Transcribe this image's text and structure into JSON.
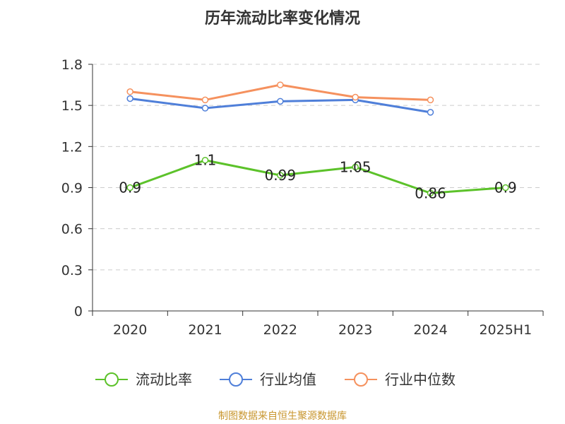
{
  "chart_data": {
    "type": "line",
    "title": "历年流动比率变化情况",
    "categories": [
      "2020",
      "2021",
      "2022",
      "2023",
      "2024",
      "2025H1"
    ],
    "ylim": [
      0,
      1.8
    ],
    "yticks": [
      "0",
      "0.3",
      "0.6",
      "0.9",
      "1.2",
      "1.5",
      "1.8"
    ],
    "grid": true,
    "legend_position": "bottom",
    "series": [
      {
        "name": "流动比率",
        "color": "#5cc22a",
        "values": [
          0.9,
          1.1,
          0.99,
          1.05,
          0.86,
          0.9
        ],
        "labels": [
          "0.9",
          "1.1",
          "0.99",
          "1.05",
          "0.86",
          "0.9"
        ]
      },
      {
        "name": "行业均值",
        "color": "#4f7fd9",
        "values": [
          1.55,
          1.48,
          1.53,
          1.54,
          1.45,
          null
        ]
      },
      {
        "name": "行业中位数",
        "color": "#f5915e",
        "values": [
          1.6,
          1.54,
          1.65,
          1.56,
          1.54,
          null
        ]
      }
    ]
  },
  "source": "制图数据来自恒生聚源数据库"
}
